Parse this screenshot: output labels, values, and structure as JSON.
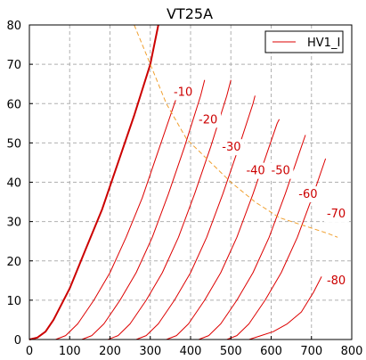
{
  "chart_data": {
    "type": "line",
    "title": "VT25A",
    "xlabel": "",
    "ylabel": "",
    "xlim": [
      0,
      800
    ],
    "ylim": [
      0,
      80
    ],
    "x_ticks": [
      "0",
      "100",
      "200",
      "300",
      "400",
      "500",
      "600",
      "700",
      "800"
    ],
    "y_ticks": [
      "0",
      "10",
      "20",
      "30",
      "40",
      "50",
      "60",
      "70",
      "80"
    ],
    "grid": true,
    "legend": {
      "position": "top-right",
      "entries": [
        "HV1_I"
      ]
    },
    "colors": {
      "curve": "#dd0000",
      "bold_curve": "#cc0000",
      "limit": "#f0a030",
      "grid": "#b0b0b0"
    },
    "series": [
      {
        "label": "",
        "bold": true,
        "start": 0,
        "end": 320,
        "points": [
          [
            0,
            0
          ],
          [
            20,
            0.5
          ],
          [
            40,
            2
          ],
          [
            60,
            5
          ],
          [
            80,
            9
          ],
          [
            100,
            13
          ],
          [
            140,
            23
          ],
          [
            180,
            33
          ],
          [
            220,
            45
          ],
          [
            260,
            57
          ],
          [
            300,
            70
          ],
          [
            320,
            80
          ]
        ]
      },
      {
        "label": "-10",
        "start": 65,
        "end": 370,
        "points": [
          [
            65,
            0
          ],
          [
            90,
            1
          ],
          [
            120,
            4
          ],
          [
            160,
            10
          ],
          [
            200,
            17
          ],
          [
            240,
            26
          ],
          [
            280,
            36
          ],
          [
            320,
            48
          ],
          [
            360,
            60
          ],
          [
            370,
            63
          ]
        ]
      },
      {
        "label": "-20",
        "start": 130,
        "end": 435,
        "points": [
          [
            130,
            0
          ],
          [
            155,
            1
          ],
          [
            185,
            4
          ],
          [
            225,
            10
          ],
          [
            265,
            17
          ],
          [
            305,
            26
          ],
          [
            345,
            37
          ],
          [
            385,
            49
          ],
          [
            425,
            62
          ],
          [
            435,
            66
          ]
        ]
      },
      {
        "label": "-30",
        "start": 195,
        "end": 500,
        "points": [
          [
            195,
            0
          ],
          [
            220,
            1
          ],
          [
            250,
            4
          ],
          [
            290,
            10
          ],
          [
            330,
            17
          ],
          [
            370,
            26
          ],
          [
            410,
            37
          ],
          [
            450,
            49
          ],
          [
            490,
            62
          ],
          [
            500,
            66
          ]
        ]
      },
      {
        "label": "-40",
        "start": 265,
        "end": 560,
        "points": [
          [
            265,
            0
          ],
          [
            290,
            1
          ],
          [
            320,
            4
          ],
          [
            360,
            10
          ],
          [
            400,
            17
          ],
          [
            440,
            26
          ],
          [
            480,
            37
          ],
          [
            520,
            49
          ],
          [
            555,
            60
          ],
          [
            560,
            62
          ]
        ]
      },
      {
        "label": "-50",
        "start": 340,
        "end": 620,
        "points": [
          [
            340,
            0
          ],
          [
            365,
            1
          ],
          [
            395,
            4
          ],
          [
            435,
            10
          ],
          [
            475,
            17
          ],
          [
            515,
            26
          ],
          [
            555,
            37
          ],
          [
            595,
            49
          ],
          [
            615,
            55
          ],
          [
            620,
            56
          ]
        ]
      },
      {
        "label": "-60",
        "start": 420,
        "end": 685,
        "points": [
          [
            420,
            0
          ],
          [
            445,
            1
          ],
          [
            475,
            4
          ],
          [
            515,
            10
          ],
          [
            555,
            17
          ],
          [
            595,
            26
          ],
          [
            635,
            37
          ],
          [
            675,
            49
          ],
          [
            685,
            52
          ]
        ]
      },
      {
        "label": "-70",
        "start": 490,
        "end": 735,
        "points": [
          [
            490,
            0
          ],
          [
            515,
            1
          ],
          [
            545,
            4
          ],
          [
            585,
            10
          ],
          [
            625,
            17
          ],
          [
            665,
            26
          ],
          [
            705,
            37
          ],
          [
            735,
            46
          ]
        ]
      },
      {
        "label": "-80",
        "start": 545,
        "end": 725,
        "points": [
          [
            545,
            0
          ],
          [
            575,
            1
          ],
          [
            605,
            2
          ],
          [
            640,
            4
          ],
          [
            675,
            7
          ],
          [
            705,
            12
          ],
          [
            725,
            16
          ]
        ]
      }
    ],
    "limit_curve": {
      "points": [
        [
          260,
          80
        ],
        [
          300,
          70
        ],
        [
          340,
          60
        ],
        [
          390,
          51
        ],
        [
          450,
          45
        ],
        [
          500,
          40
        ],
        [
          560,
          35
        ],
        [
          620,
          31
        ],
        [
          680,
          29
        ],
        [
          740,
          27
        ],
        [
          765,
          26
        ]
      ]
    },
    "curve_labels": [
      {
        "text": "-10",
        "x": 358,
        "y": 62
      },
      {
        "text": "-20",
        "x": 420,
        "y": 55
      },
      {
        "text": "-30",
        "x": 478,
        "y": 48
      },
      {
        "text": "-40",
        "x": 538,
        "y": 42
      },
      {
        "text": "-50",
        "x": 600,
        "y": 42
      },
      {
        "text": "-60",
        "x": 668,
        "y": 36
      },
      {
        "text": "-70",
        "x": 738,
        "y": 31
      },
      {
        "text": "-80",
        "x": 738,
        "y": 14
      }
    ]
  }
}
